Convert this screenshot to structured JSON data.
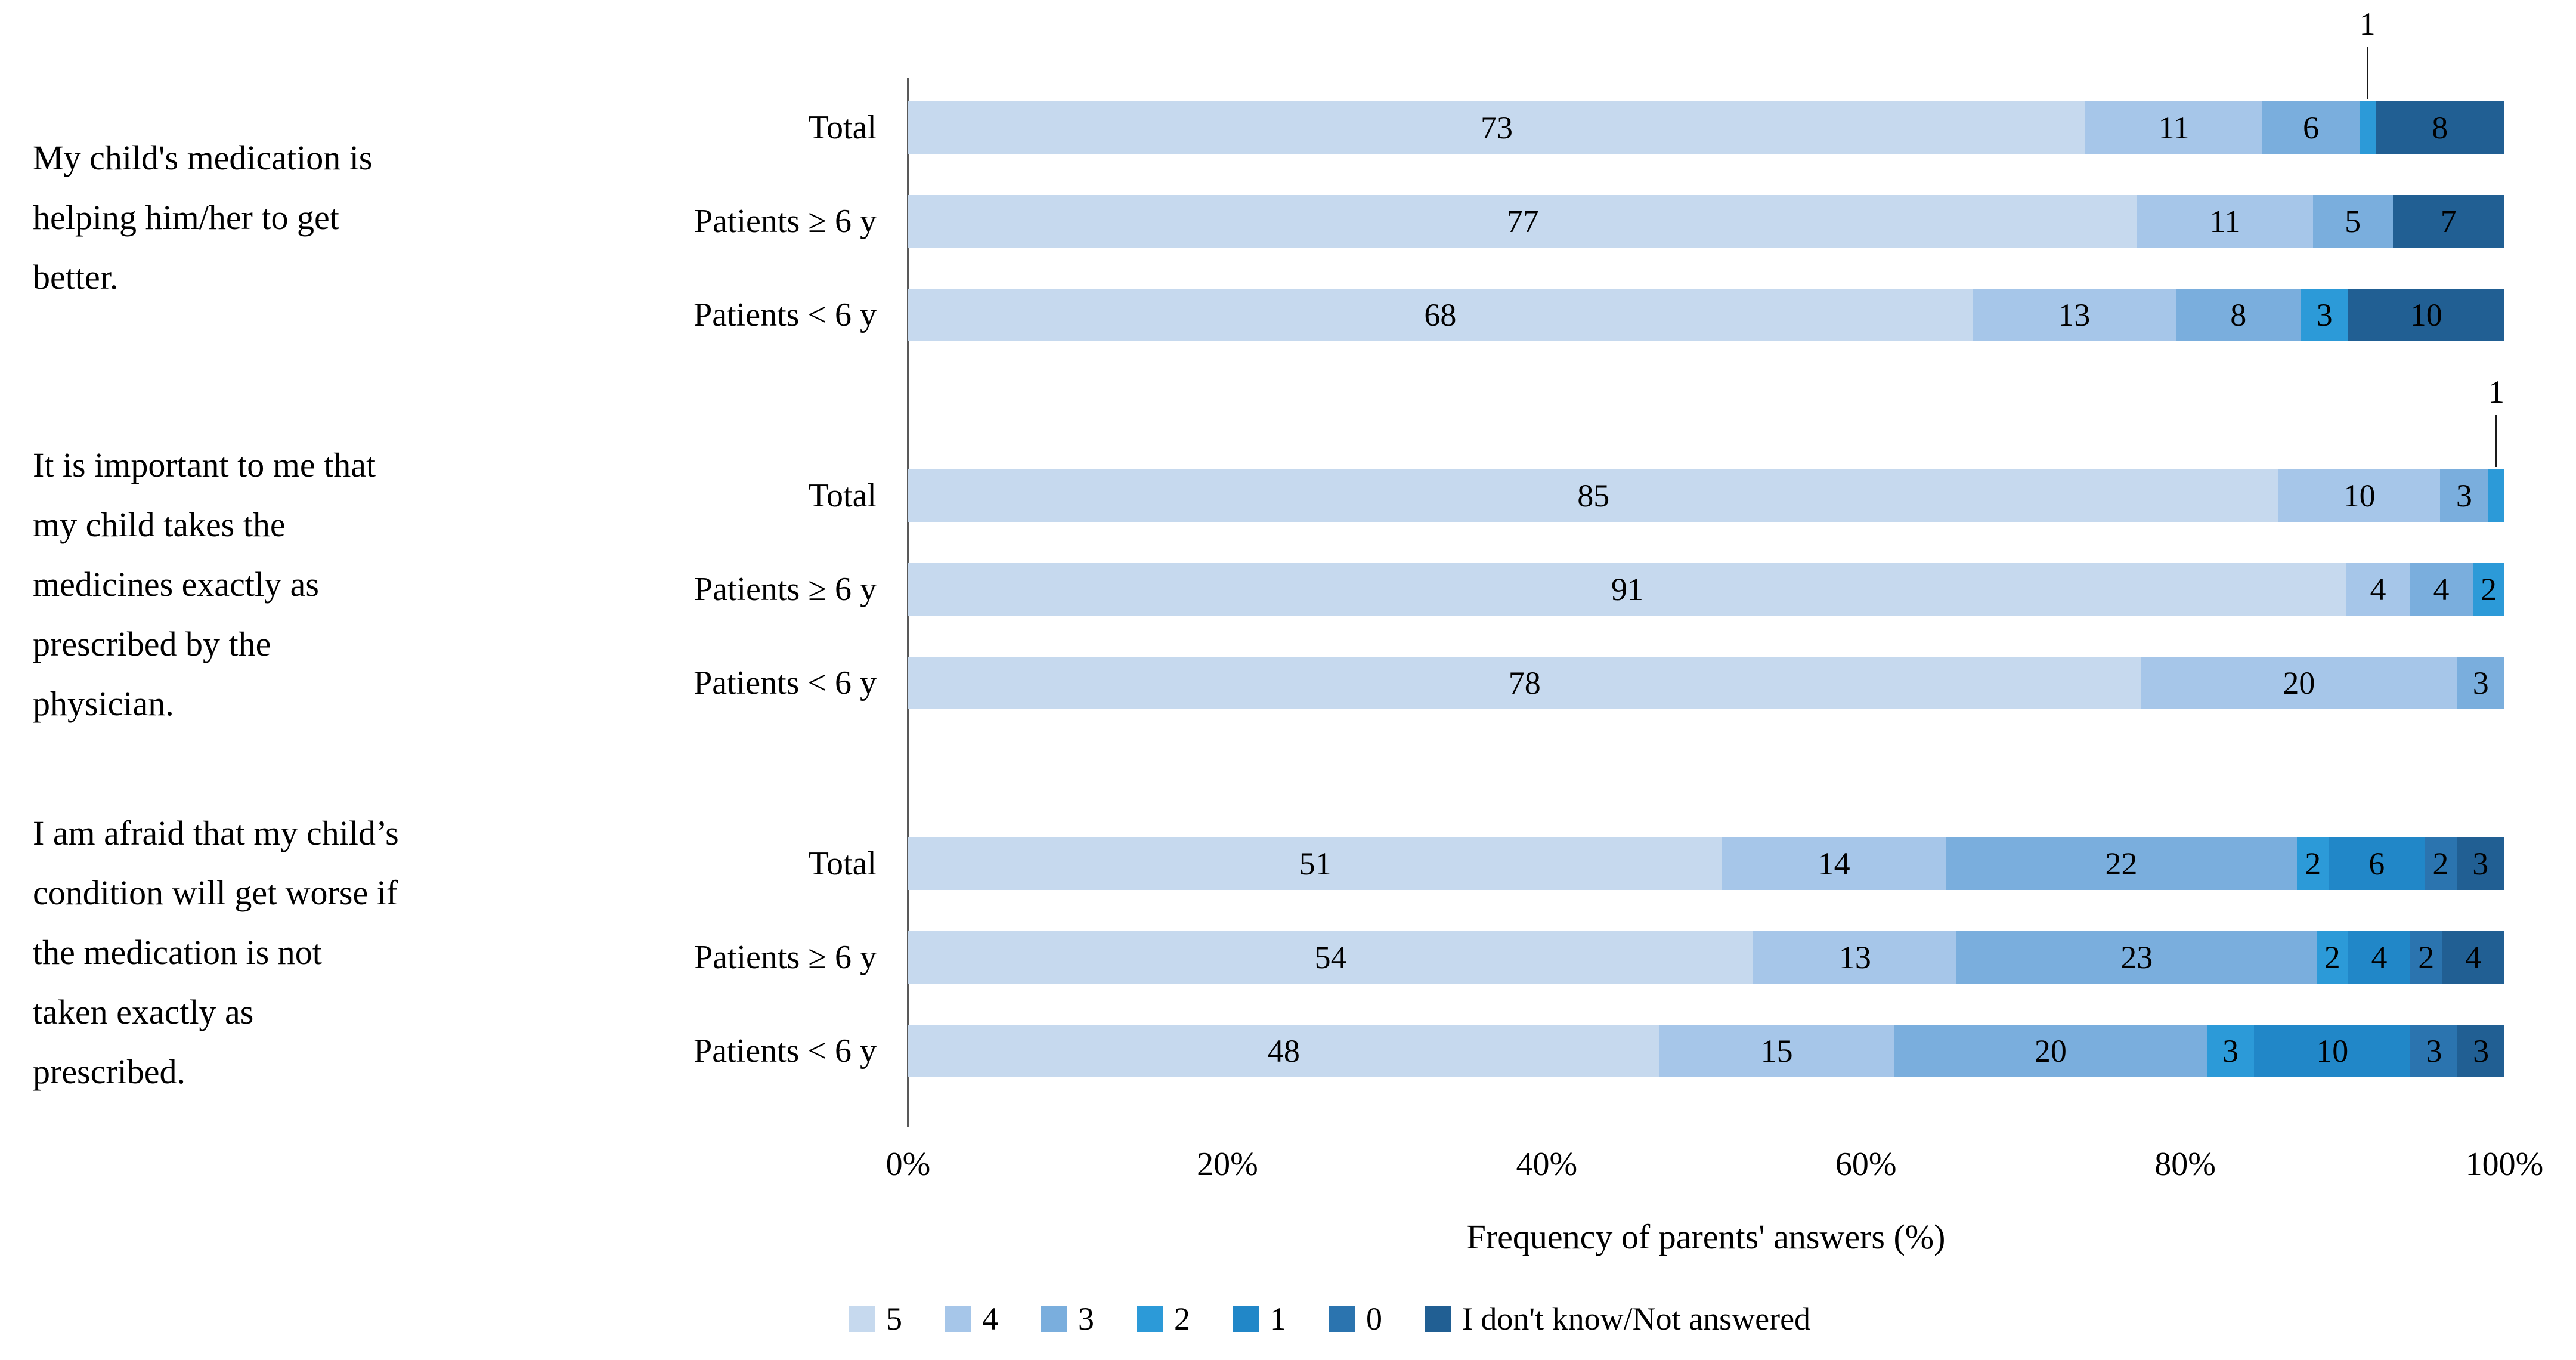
{
  "chart_data": {
    "type": "bar",
    "subtype": "horizontal-stacked-100-percent",
    "unit": "percent",
    "xlabel": "Frequency of parents' answers (%)",
    "xlim": [
      0,
      100
    ],
    "x_ticks": [
      "0%",
      "20%",
      "40%",
      "60%",
      "80%",
      "100%"
    ],
    "grid": "off",
    "legend_position": "bottom",
    "palette": {
      "5": "#c6d9ee",
      "4": "#a6c6e9",
      "3": "#7aaedd",
      "2": "#2c9ad8",
      "1": "#2187c8",
      "0": "#2b74af",
      "idk": "#215f93"
    },
    "legend": [
      {
        "key": "5",
        "label": "5"
      },
      {
        "key": "4",
        "label": "4"
      },
      {
        "key": "3",
        "label": "3"
      },
      {
        "key": "2",
        "label": "2"
      },
      {
        "key": "1",
        "label": "1"
      },
      {
        "key": "0",
        "label": "0"
      },
      {
        "key": "idk",
        "label": "I don't know/Not answered"
      }
    ],
    "groups": [
      {
        "question": "My child's medication is helping him/her to get better.",
        "question_lines": [
          "My child's medication is",
          "helping him/her to get",
          "better."
        ],
        "rows": [
          {
            "label": "Total",
            "segments": [
              {
                "cat": "5",
                "value": 73
              },
              {
                "cat": "4",
                "value": 11
              },
              {
                "cat": "3",
                "value": 6
              },
              {
                "cat": "2",
                "value": 1,
                "callout": true
              },
              {
                "cat": "idk",
                "value": 8
              }
            ]
          },
          {
            "label": "Patients ≥ 6 y",
            "segments": [
              {
                "cat": "5",
                "value": 77
              },
              {
                "cat": "4",
                "value": 11
              },
              {
                "cat": "3",
                "value": 5
              },
              {
                "cat": "idk",
                "value": 7
              }
            ]
          },
          {
            "label": "Patients < 6 y",
            "segments": [
              {
                "cat": "5",
                "value": 68
              },
              {
                "cat": "4",
                "value": 13
              },
              {
                "cat": "3",
                "value": 8
              },
              {
                "cat": "2",
                "value": 3
              },
              {
                "cat": "idk",
                "value": 10
              }
            ]
          }
        ]
      },
      {
        "question": "It is important to me that my child takes the medicines exactly as prescribed by the physician.",
        "question_lines": [
          "It is important to me that",
          "my child takes the",
          "medicines exactly as",
          "prescribed by the",
          "physician."
        ],
        "rows": [
          {
            "label": "Total",
            "segments": [
              {
                "cat": "5",
                "value": 85
              },
              {
                "cat": "4",
                "value": 10
              },
              {
                "cat": "3",
                "value": 3
              },
              {
                "cat": "2",
                "value": 1,
                "callout": true
              }
            ]
          },
          {
            "label": "Patients ≥ 6 y",
            "segments": [
              {
                "cat": "5",
                "value": 91
              },
              {
                "cat": "4",
                "value": 4
              },
              {
                "cat": "3",
                "value": 4
              },
              {
                "cat": "2",
                "value": 2
              }
            ]
          },
          {
            "label": "Patients < 6 y",
            "segments": [
              {
                "cat": "5",
                "value": 78
              },
              {
                "cat": "4",
                "value": 20
              },
              {
                "cat": "3",
                "value": 3
              }
            ]
          }
        ]
      },
      {
        "question": "I am afraid that my child’s condition will get worse if the medication is not taken exactly as prescribed.",
        "question_lines": [
          "I am afraid that my child’s",
          "condition will get worse if",
          "the medication is not",
          "taken exactly as",
          "prescribed."
        ],
        "rows": [
          {
            "label": "Total",
            "segments": [
              {
                "cat": "5",
                "value": 51
              },
              {
                "cat": "4",
                "value": 14
              },
              {
                "cat": "3",
                "value": 22
              },
              {
                "cat": "2",
                "value": 2
              },
              {
                "cat": "1",
                "value": 6
              },
              {
                "cat": "0",
                "value": 2
              },
              {
                "cat": "idk",
                "value": 3
              }
            ]
          },
          {
            "label": "Patients ≥ 6 y",
            "segments": [
              {
                "cat": "5",
                "value": 54
              },
              {
                "cat": "4",
                "value": 13
              },
              {
                "cat": "3",
                "value": 23
              },
              {
                "cat": "2",
                "value": 2
              },
              {
                "cat": "1",
                "value": 4
              },
              {
                "cat": "0",
                "value": 2
              },
              {
                "cat": "idk",
                "value": 4
              }
            ]
          },
          {
            "label": "Patients < 6 y",
            "segments": [
              {
                "cat": "5",
                "value": 48
              },
              {
                "cat": "4",
                "value": 15
              },
              {
                "cat": "3",
                "value": 20
              },
              {
                "cat": "2",
                "value": 3
              },
              {
                "cat": "1",
                "value": 10
              },
              {
                "cat": "0",
                "value": 3
              },
              {
                "cat": "idk",
                "value": 3
              }
            ]
          }
        ]
      }
    ]
  }
}
